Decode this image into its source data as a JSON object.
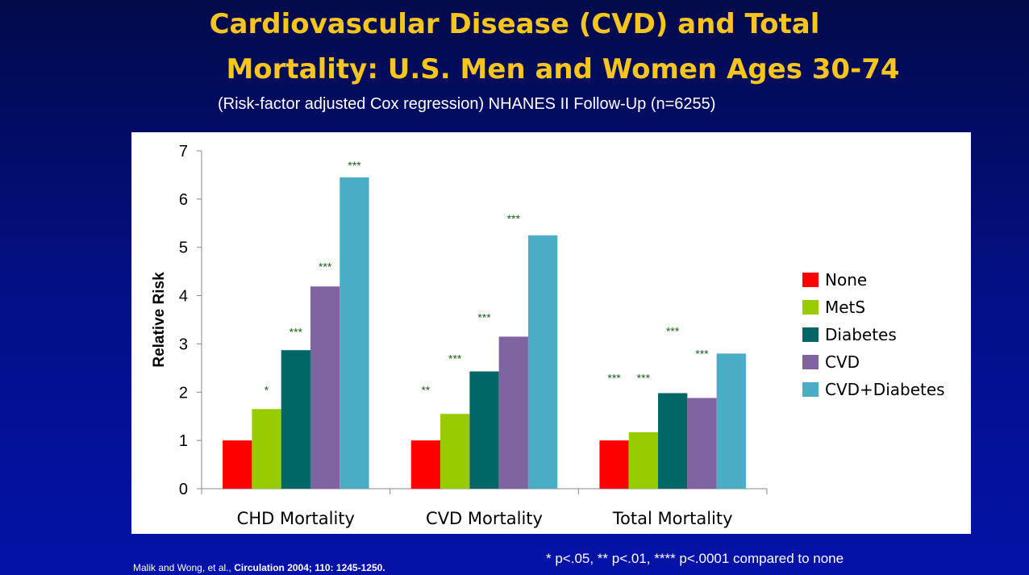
{
  "slide": {
    "title_line1": "Cardiovascular Disease (CVD) and Total",
    "title_line2": "Mortality: U.S. Men and Women Ages 30-74",
    "subtitle": "(Risk-factor adjusted Cox regression) NHANES II Follow-Up (n=6255)",
    "citation_prefix": "Malik and Wong, et al., ",
    "citation_journal": "Circulation 2004; 110: 1245-1250.",
    "footnote": "* p<.05, ** p<.01, **** p<.0001 compared to none"
  },
  "chart_data": {
    "type": "bar",
    "title": "",
    "xlabel": "",
    "ylabel": "Relative Risk",
    "ylim": [
      0,
      7
    ],
    "yticks": [
      0,
      1,
      2,
      3,
      4,
      5,
      6,
      7
    ],
    "grid": false,
    "legend_position": "right",
    "categories": [
      "CHD Mortality",
      "CVD Mortality",
      "Total Mortality"
    ],
    "series": [
      {
        "name": "None",
        "color": "#ff0000",
        "values": [
          1.0,
          1.0,
          1.0
        ],
        "significance": [
          "",
          "",
          ""
        ]
      },
      {
        "name": "MetS",
        "color": "#99cc00",
        "values": [
          1.65,
          1.55,
          1.17
        ],
        "significance": [
          "*",
          "***",
          "***"
        ]
      },
      {
        "name": "Diabetes",
        "color": "#006666",
        "values": [
          2.87,
          2.43,
          1.98
        ],
        "significance": [
          "***",
          "***",
          "***"
        ]
      },
      {
        "name": "CVD",
        "color": "#8064a2",
        "values": [
          4.19,
          3.15,
          1.88
        ],
        "significance": [
          "***",
          "***",
          "***"
        ]
      },
      {
        "name": "CVD+Diabetes",
        "color": "#4bacc6",
        "values": [
          6.45,
          5.25,
          2.8
        ],
        "significance": [
          "***",
          "***",
          "***"
        ]
      }
    ],
    "annotations": [
      {
        "category": "CHD Mortality",
        "series": "MetS",
        "text": "*",
        "y": 2.05
      },
      {
        "category": "CHD Mortality",
        "series": "Diabetes",
        "text": "***",
        "y": 3.25
      },
      {
        "category": "CHD Mortality",
        "series": "CVD",
        "text": "***",
        "y": 4.6
      },
      {
        "category": "CHD Mortality",
        "series": "CVD+Diabetes",
        "text": "***",
        "y": 6.7
      },
      {
        "category": "CVD Mortality",
        "series": "None",
        "text": "**",
        "y": 2.05
      },
      {
        "category": "CVD Mortality",
        "series": "MetS",
        "text": "***",
        "y": 2.7
      },
      {
        "category": "CVD Mortality",
        "series": "Diabetes",
        "text": "***",
        "y": 3.55
      },
      {
        "category": "CVD Mortality",
        "series": "CVD",
        "text": "***",
        "y": 5.6
      },
      {
        "category": "Total Mortality",
        "series": "None",
        "text": "***",
        "y": 2.3
      },
      {
        "category": "Total Mortality",
        "series": "MetS",
        "text": "***",
        "y": 2.3
      },
      {
        "category": "Total Mortality",
        "series": "Diabetes",
        "text": "***",
        "y": 3.27
      },
      {
        "category": "Total Mortality",
        "series": "CVD",
        "text": "***",
        "y": 2.8
      }
    ]
  }
}
